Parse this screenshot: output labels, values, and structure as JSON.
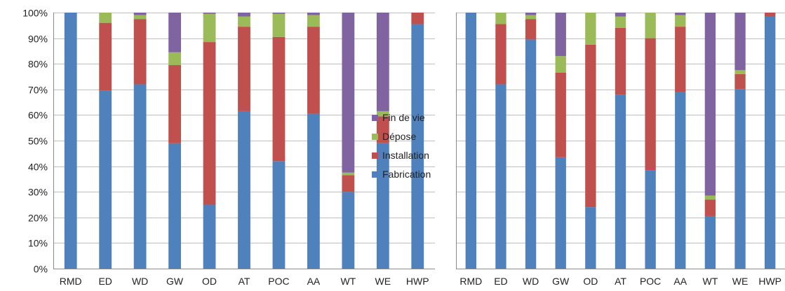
{
  "chart_data": [
    {
      "type": "bar",
      "stacked": true,
      "percent": true,
      "categories": [
        "RMD",
        "ED",
        "WD",
        "GW",
        "OD",
        "AT",
        "POC",
        "AA",
        "WT",
        "WE",
        "HWP"
      ],
      "yticks": [
        "0%",
        "10%",
        "20%",
        "30%",
        "40%",
        "50%",
        "60%",
        "70%",
        "80%",
        "90%",
        "100%"
      ],
      "ylim": [
        0,
        100
      ],
      "grid": true,
      "legend": "right",
      "series": [
        {
          "name": "Fabrication",
          "color": "#4F81BD",
          "values": [
            100,
            69.5,
            72,
            49,
            25,
            61.5,
            42,
            60.5,
            30,
            49,
            95.5
          ]
        },
        {
          "name": "Installation",
          "color": "#C0504D",
          "values": [
            0,
            26.5,
            25.5,
            30.5,
            63.5,
            33,
            48.5,
            34,
            6.5,
            10.5,
            4.5
          ]
        },
        {
          "name": "Dépose",
          "color": "#9BBB59",
          "values": [
            0,
            4,
            1.5,
            5,
            11,
            4,
            9,
            4.5,
            1,
            2,
            0
          ]
        },
        {
          "name": "Fin de vie",
          "color": "#8064A2",
          "values": [
            0,
            0,
            1,
            15.5,
            0.5,
            1.5,
            0.5,
            1,
            62.5,
            38.5,
            0
          ]
        }
      ]
    },
    {
      "type": "bar",
      "stacked": true,
      "percent": true,
      "categories": [
        "RMD",
        "ED",
        "WD",
        "GW",
        "OD",
        "AT",
        "POC",
        "AA",
        "WT",
        "WE",
        "HWP"
      ],
      "ylim": [
        0,
        100
      ],
      "grid": true,
      "series": [
        {
          "name": "Fabrication",
          "color": "#4F81BD",
          "values": [
            100,
            72,
            89.5,
            43.5,
            24,
            68,
            38.5,
            69,
            20.5,
            70,
            98.5
          ]
        },
        {
          "name": "Installation",
          "color": "#C0504D",
          "values": [
            0,
            23.5,
            8,
            33,
            63.5,
            26,
            51.5,
            25.5,
            6.5,
            6,
            1.5
          ]
        },
        {
          "name": "Dépose",
          "color": "#9BBB59",
          "values": [
            0,
            4.5,
            1.5,
            6.5,
            12.5,
            4.5,
            10,
            4.5,
            1.5,
            1.5,
            0
          ]
        },
        {
          "name": "Fin de vie",
          "color": "#8064A2",
          "values": [
            0,
            0,
            1,
            17,
            0,
            1.5,
            0,
            1,
            71.5,
            22.5,
            0
          ]
        }
      ]
    }
  ]
}
